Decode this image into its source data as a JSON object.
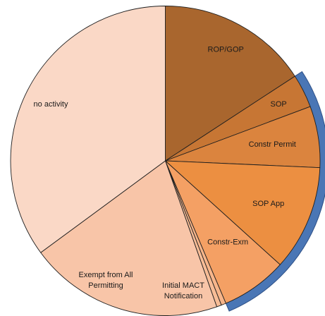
{
  "chart_data": {
    "type": "pie",
    "title": "",
    "start_angle_deg": 0,
    "direction": "clockwise",
    "legend": "none",
    "slices": [
      {
        "label": "ROP/GOP",
        "value": 15.8,
        "color": "#A9662E"
      },
      {
        "label": "SOP",
        "value": 3.5,
        "color": "#C77634"
      },
      {
        "label": "Constr Permit",
        "value": 6.4,
        "color": "#DB843E"
      },
      {
        "label": "SOP App",
        "value": 11.0,
        "color": "#EC8F41"
      },
      {
        "label": "Constr-Exm",
        "value": 6.9,
        "color": "#F4A064"
      },
      {
        "label": "",
        "value": 0.5,
        "color": "#F7B58A"
      },
      {
        "label": "Initial MACT Notification",
        "value": 0.5,
        "color": "#F7BC96"
      },
      {
        "label": "Exempt from All Permitting",
        "value": 20.3,
        "color": "#F8C5A8"
      },
      {
        "label": "no activity",
        "value": 35.1,
        "color": "#FAD8C6"
      }
    ],
    "highlight": {
      "from_slice": 1,
      "to_slice": 4,
      "color": "#4A76B5"
    }
  }
}
